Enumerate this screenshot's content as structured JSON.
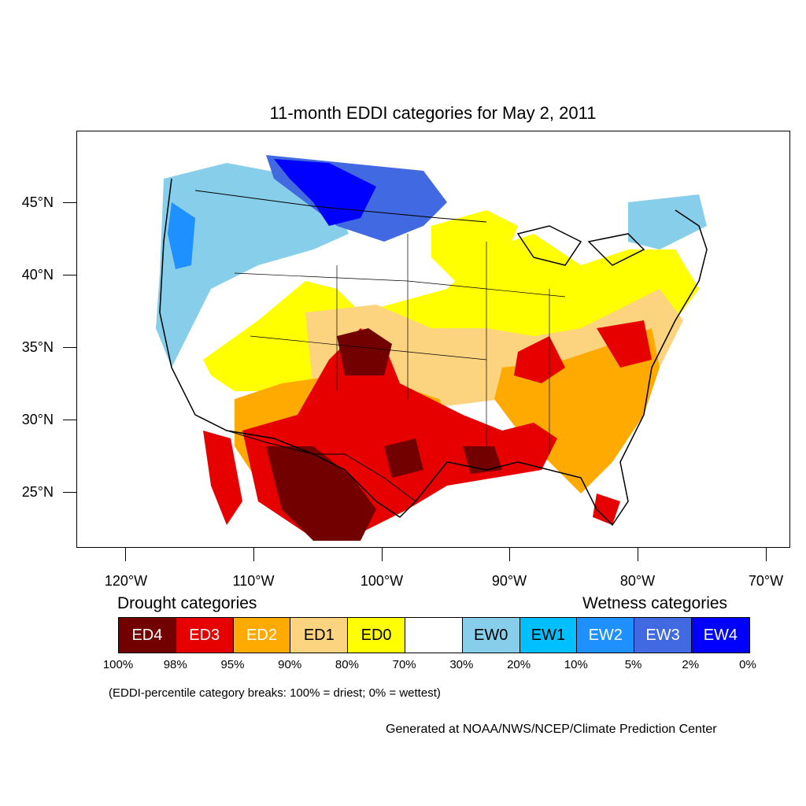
{
  "title": "11-month EDDI categories for May 2, 2011",
  "y_axis_labels": [
    "45°N",
    "40°N",
    "35°N",
    "30°N",
    "25°N"
  ],
  "x_axis_labels": [
    "120°W",
    "110°W",
    "100°W",
    "90°W",
    "80°W",
    "70°W"
  ],
  "legend": {
    "drought_heading": "Drought categories",
    "wetness_heading": "Wetness categories",
    "categories": [
      {
        "label": "ED4",
        "color": "#730000",
        "text_color": "#ffffff"
      },
      {
        "label": "ED3",
        "color": "#e60000",
        "text_color": "#ffffff"
      },
      {
        "label": "ED2",
        "color": "#ffaa00",
        "text_color": "#ffffff"
      },
      {
        "label": "ED1",
        "color": "#fcd37f",
        "text_color": "#000000"
      },
      {
        "label": "ED0",
        "color": "#ffff00",
        "text_color": "#000000"
      },
      {
        "label": "",
        "color": "#ffffff",
        "text_color": "#000000"
      },
      {
        "label": "EW0",
        "color": "#87ceeb",
        "text_color": "#000000"
      },
      {
        "label": "EW1",
        "color": "#00bfff",
        "text_color": "#000000"
      },
      {
        "label": "EW2",
        "color": "#1e90ff",
        "text_color": "#ffffff"
      },
      {
        "label": "EW3",
        "color": "#4169e1",
        "text_color": "#ffffff"
      },
      {
        "label": "EW4",
        "color": "#0000ff",
        "text_color": "#ffffff"
      }
    ],
    "breaks": [
      "100%",
      "98%",
      "95%",
      "90%",
      "80%",
      "70%",
      "30%",
      "20%",
      "10%",
      "5%",
      "2%",
      "0%"
    ]
  },
  "note": "(EDDI-percentile category breaks: 100% = driest; 0% = wettest)",
  "credit": "Generated at NOAA/NWS/NCEP/Climate Prediction Center"
}
